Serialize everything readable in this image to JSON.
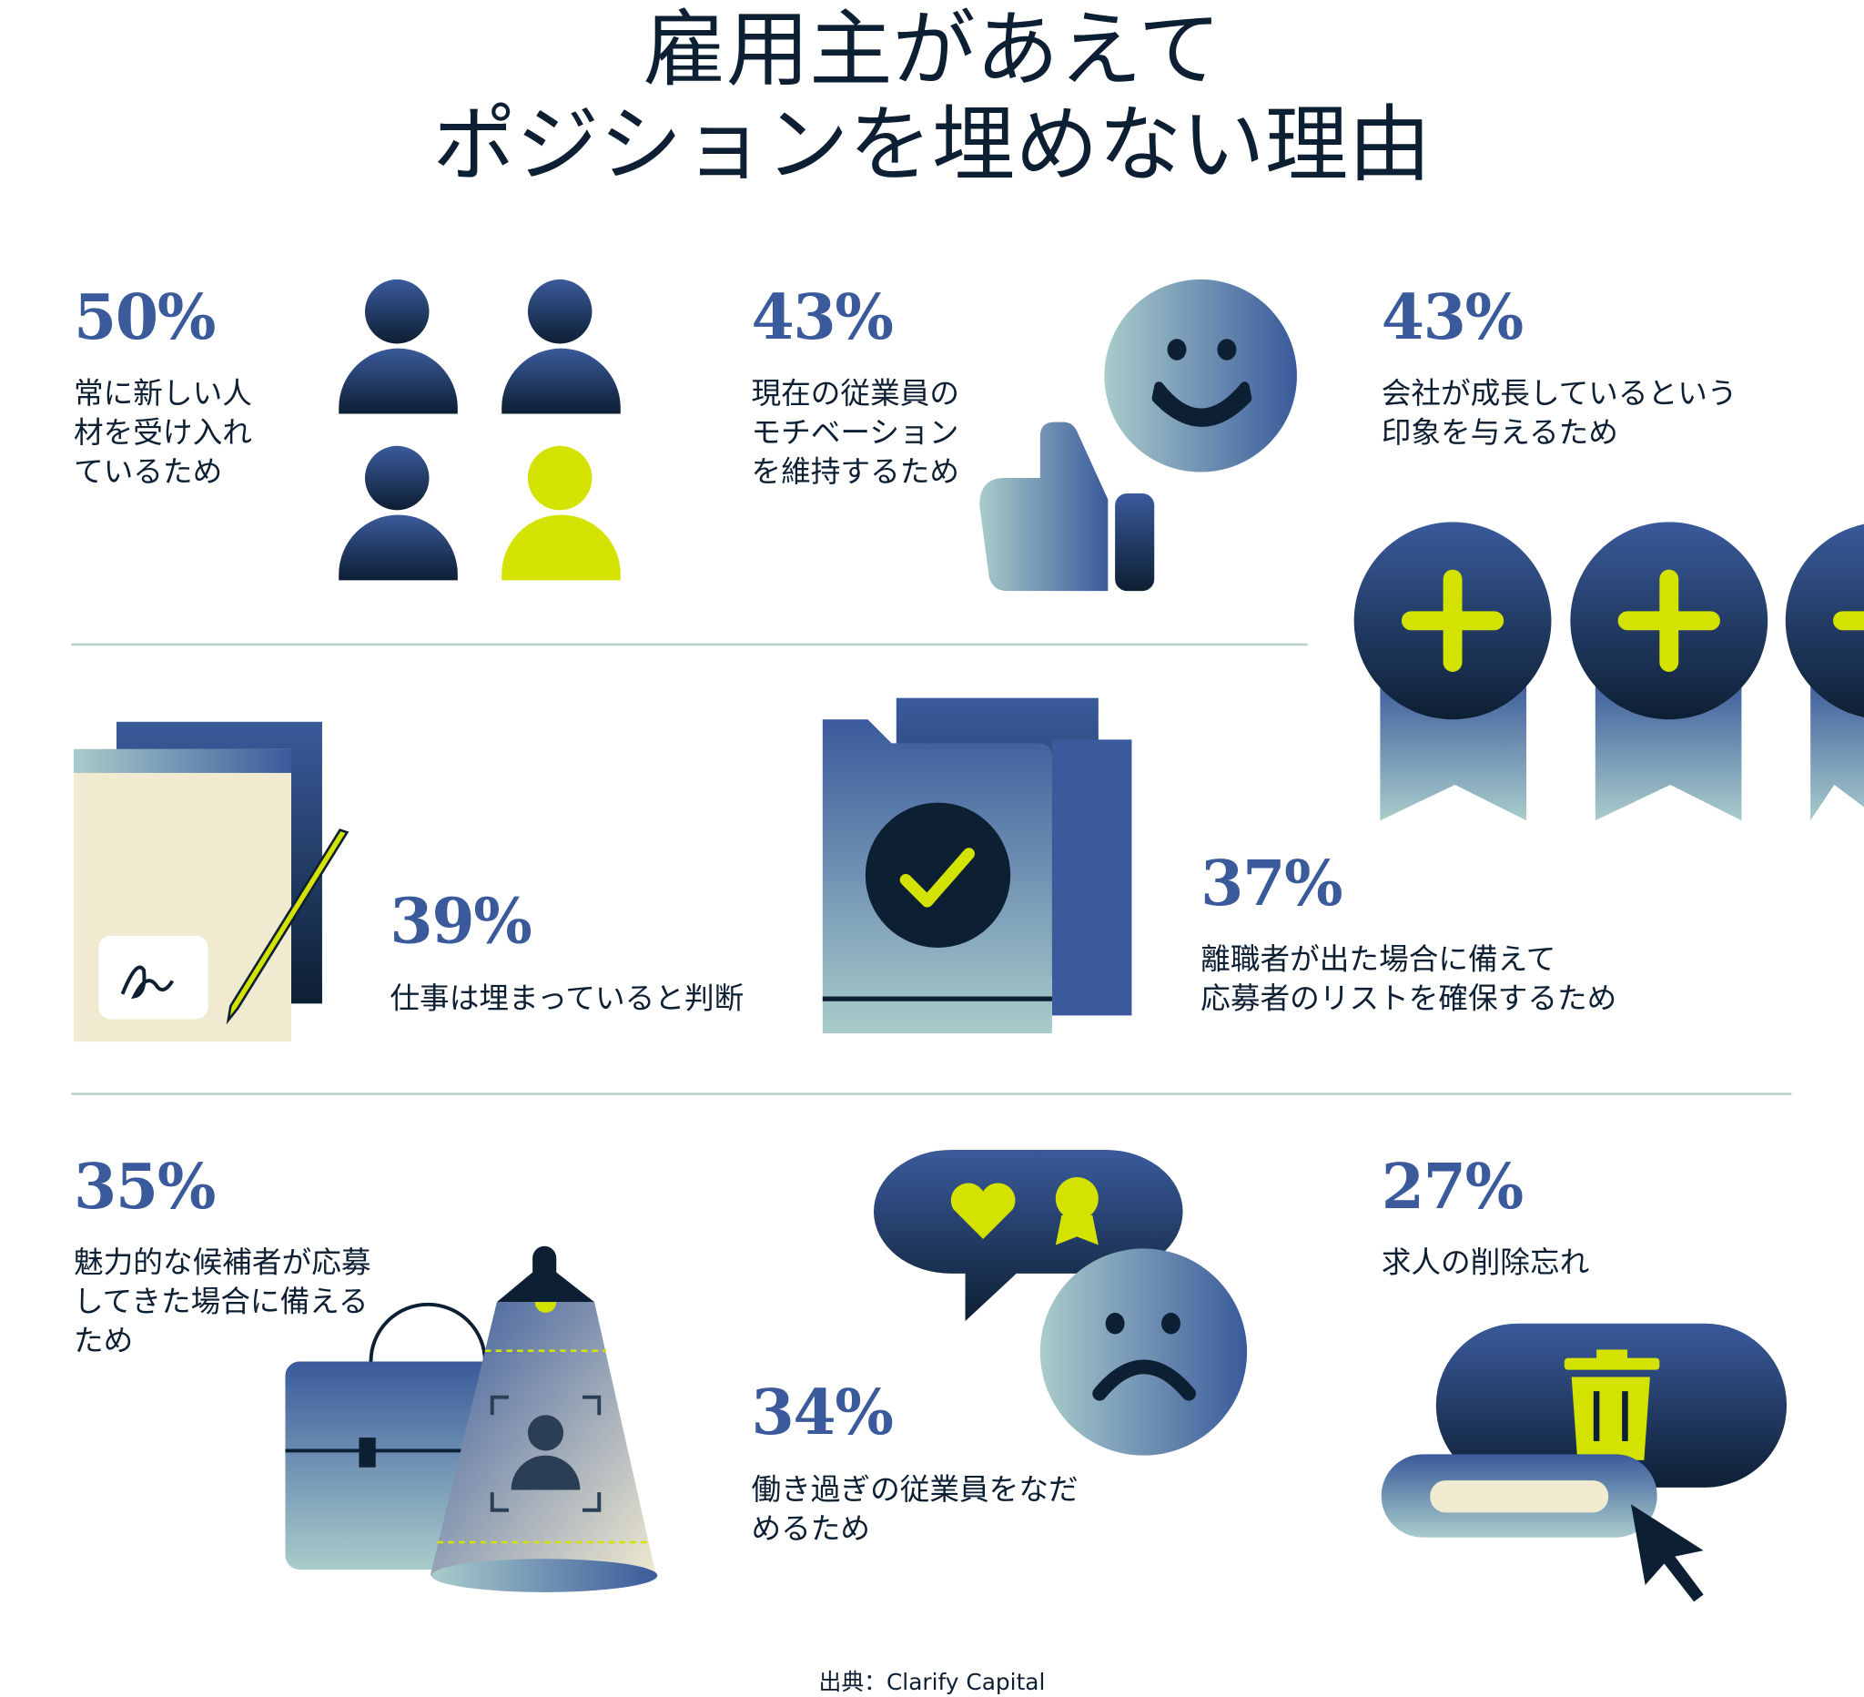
{
  "title": {
    "line1": "雇用主があえて",
    "line2": "ポジションを埋めない理由"
  },
  "colors": {
    "navy": "#0d1f33",
    "blue": "#3a5a9b",
    "lime": "#d4e200",
    "mint": "#a9cccb",
    "cream": "#f0ead0"
  },
  "stats": [
    {
      "value": "50%",
      "text": [
        "常に新しい人",
        "材を受け入れ",
        "ているため"
      ],
      "icon": "people-icon"
    },
    {
      "value": "43%",
      "text": [
        "現在の従業員の",
        "モチベーション",
        "を維持するため"
      ],
      "icon": "smiley-thumbs-up-icon"
    },
    {
      "value": "43%",
      "text": [
        "会社が成長しているという",
        "印象を与えるため"
      ],
      "icon": "plus-badges-icon"
    },
    {
      "value": "39%",
      "text": [
        "仕事は埋まっていると判断"
      ],
      "icon": "signed-document-icon"
    },
    {
      "value": "37%",
      "text": [
        "離職者が出た場合に備えて",
        "応募者のリストを確保するため"
      ],
      "icon": "checked-folder-icon"
    },
    {
      "value": "35%",
      "text": [
        "魅力的な候補者が応募",
        "してきた場合に備える",
        "ため"
      ],
      "icon": "briefcase-spotlight-icon"
    },
    {
      "value": "34%",
      "text": [
        "働き過ぎの従業員をなだ",
        "めるため"
      ],
      "icon": "sad-face-chat-icon"
    },
    {
      "value": "27%",
      "text": [
        "求人の削除忘れ"
      ],
      "icon": "trash-button-cursor-icon"
    }
  ],
  "source": "出典：Clarify Capital"
}
